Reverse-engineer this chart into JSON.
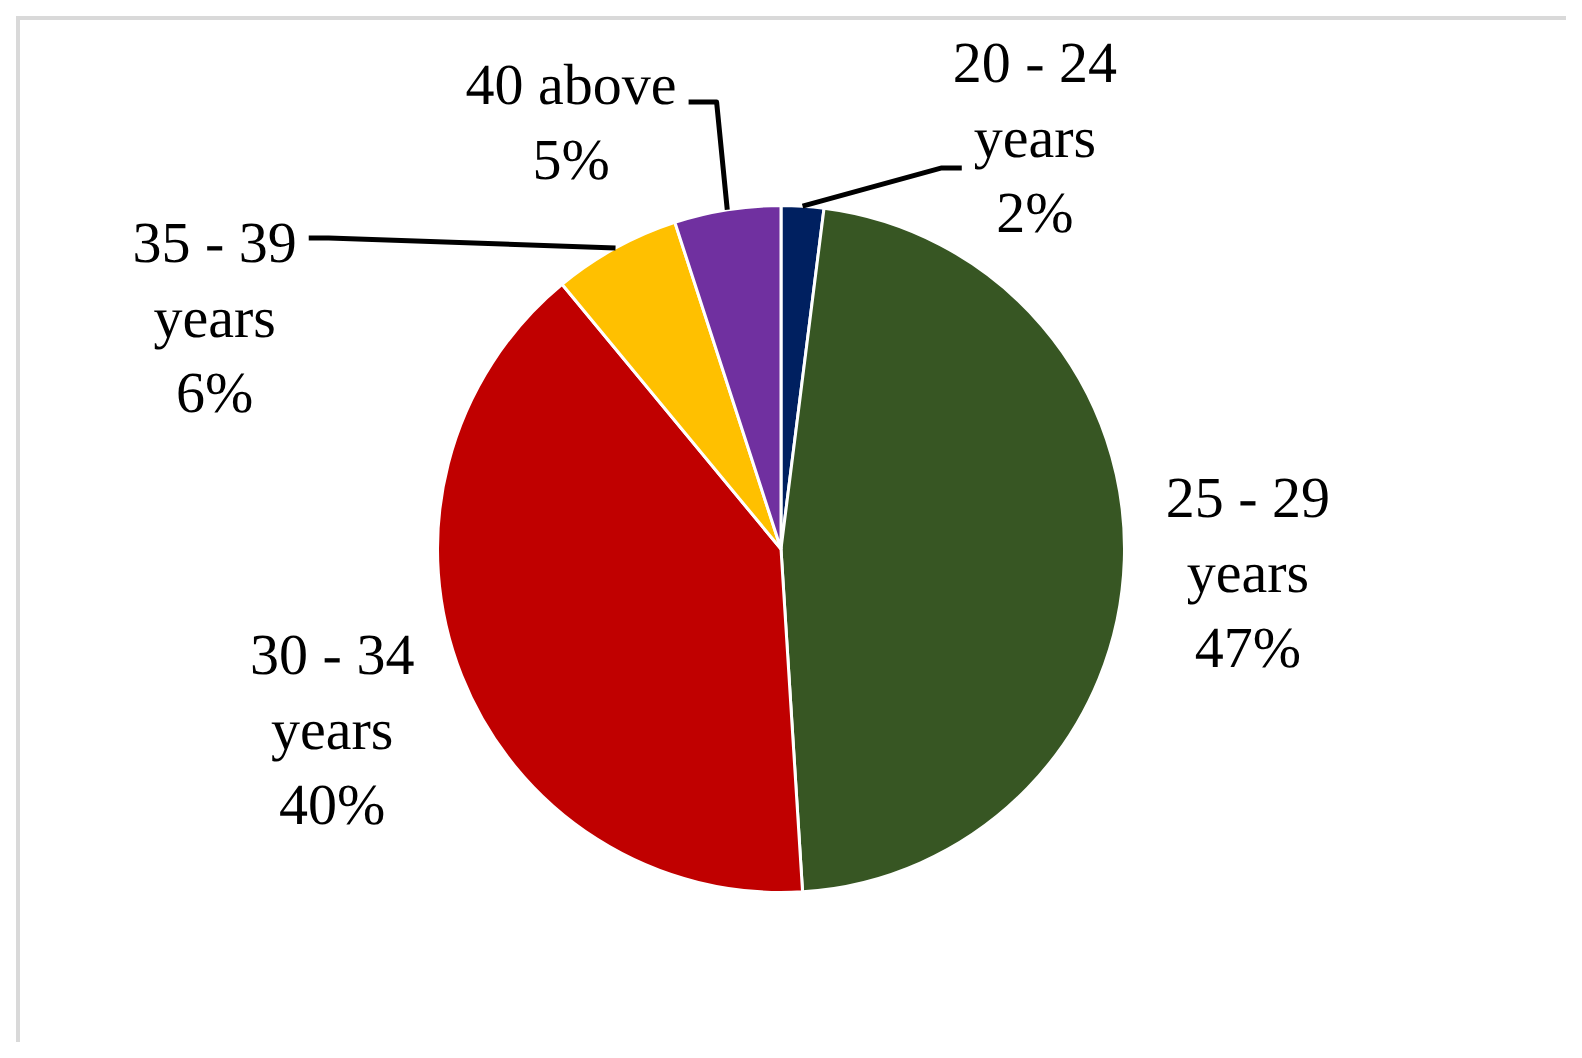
{
  "chart_data": {
    "type": "pie",
    "categories": [
      "20 - 24 years",
      "25 - 29 years",
      "30 - 34 years",
      "35 - 39 years",
      "40 above"
    ],
    "values": [
      2,
      47,
      40,
      6,
      5
    ],
    "colors": [
      "#002060",
      "#375623",
      "#c00000",
      "#ffc000",
      "#7030a0"
    ],
    "value_labels": [
      "2%",
      "47%",
      "40%",
      "6%",
      "5%"
    ]
  }
}
